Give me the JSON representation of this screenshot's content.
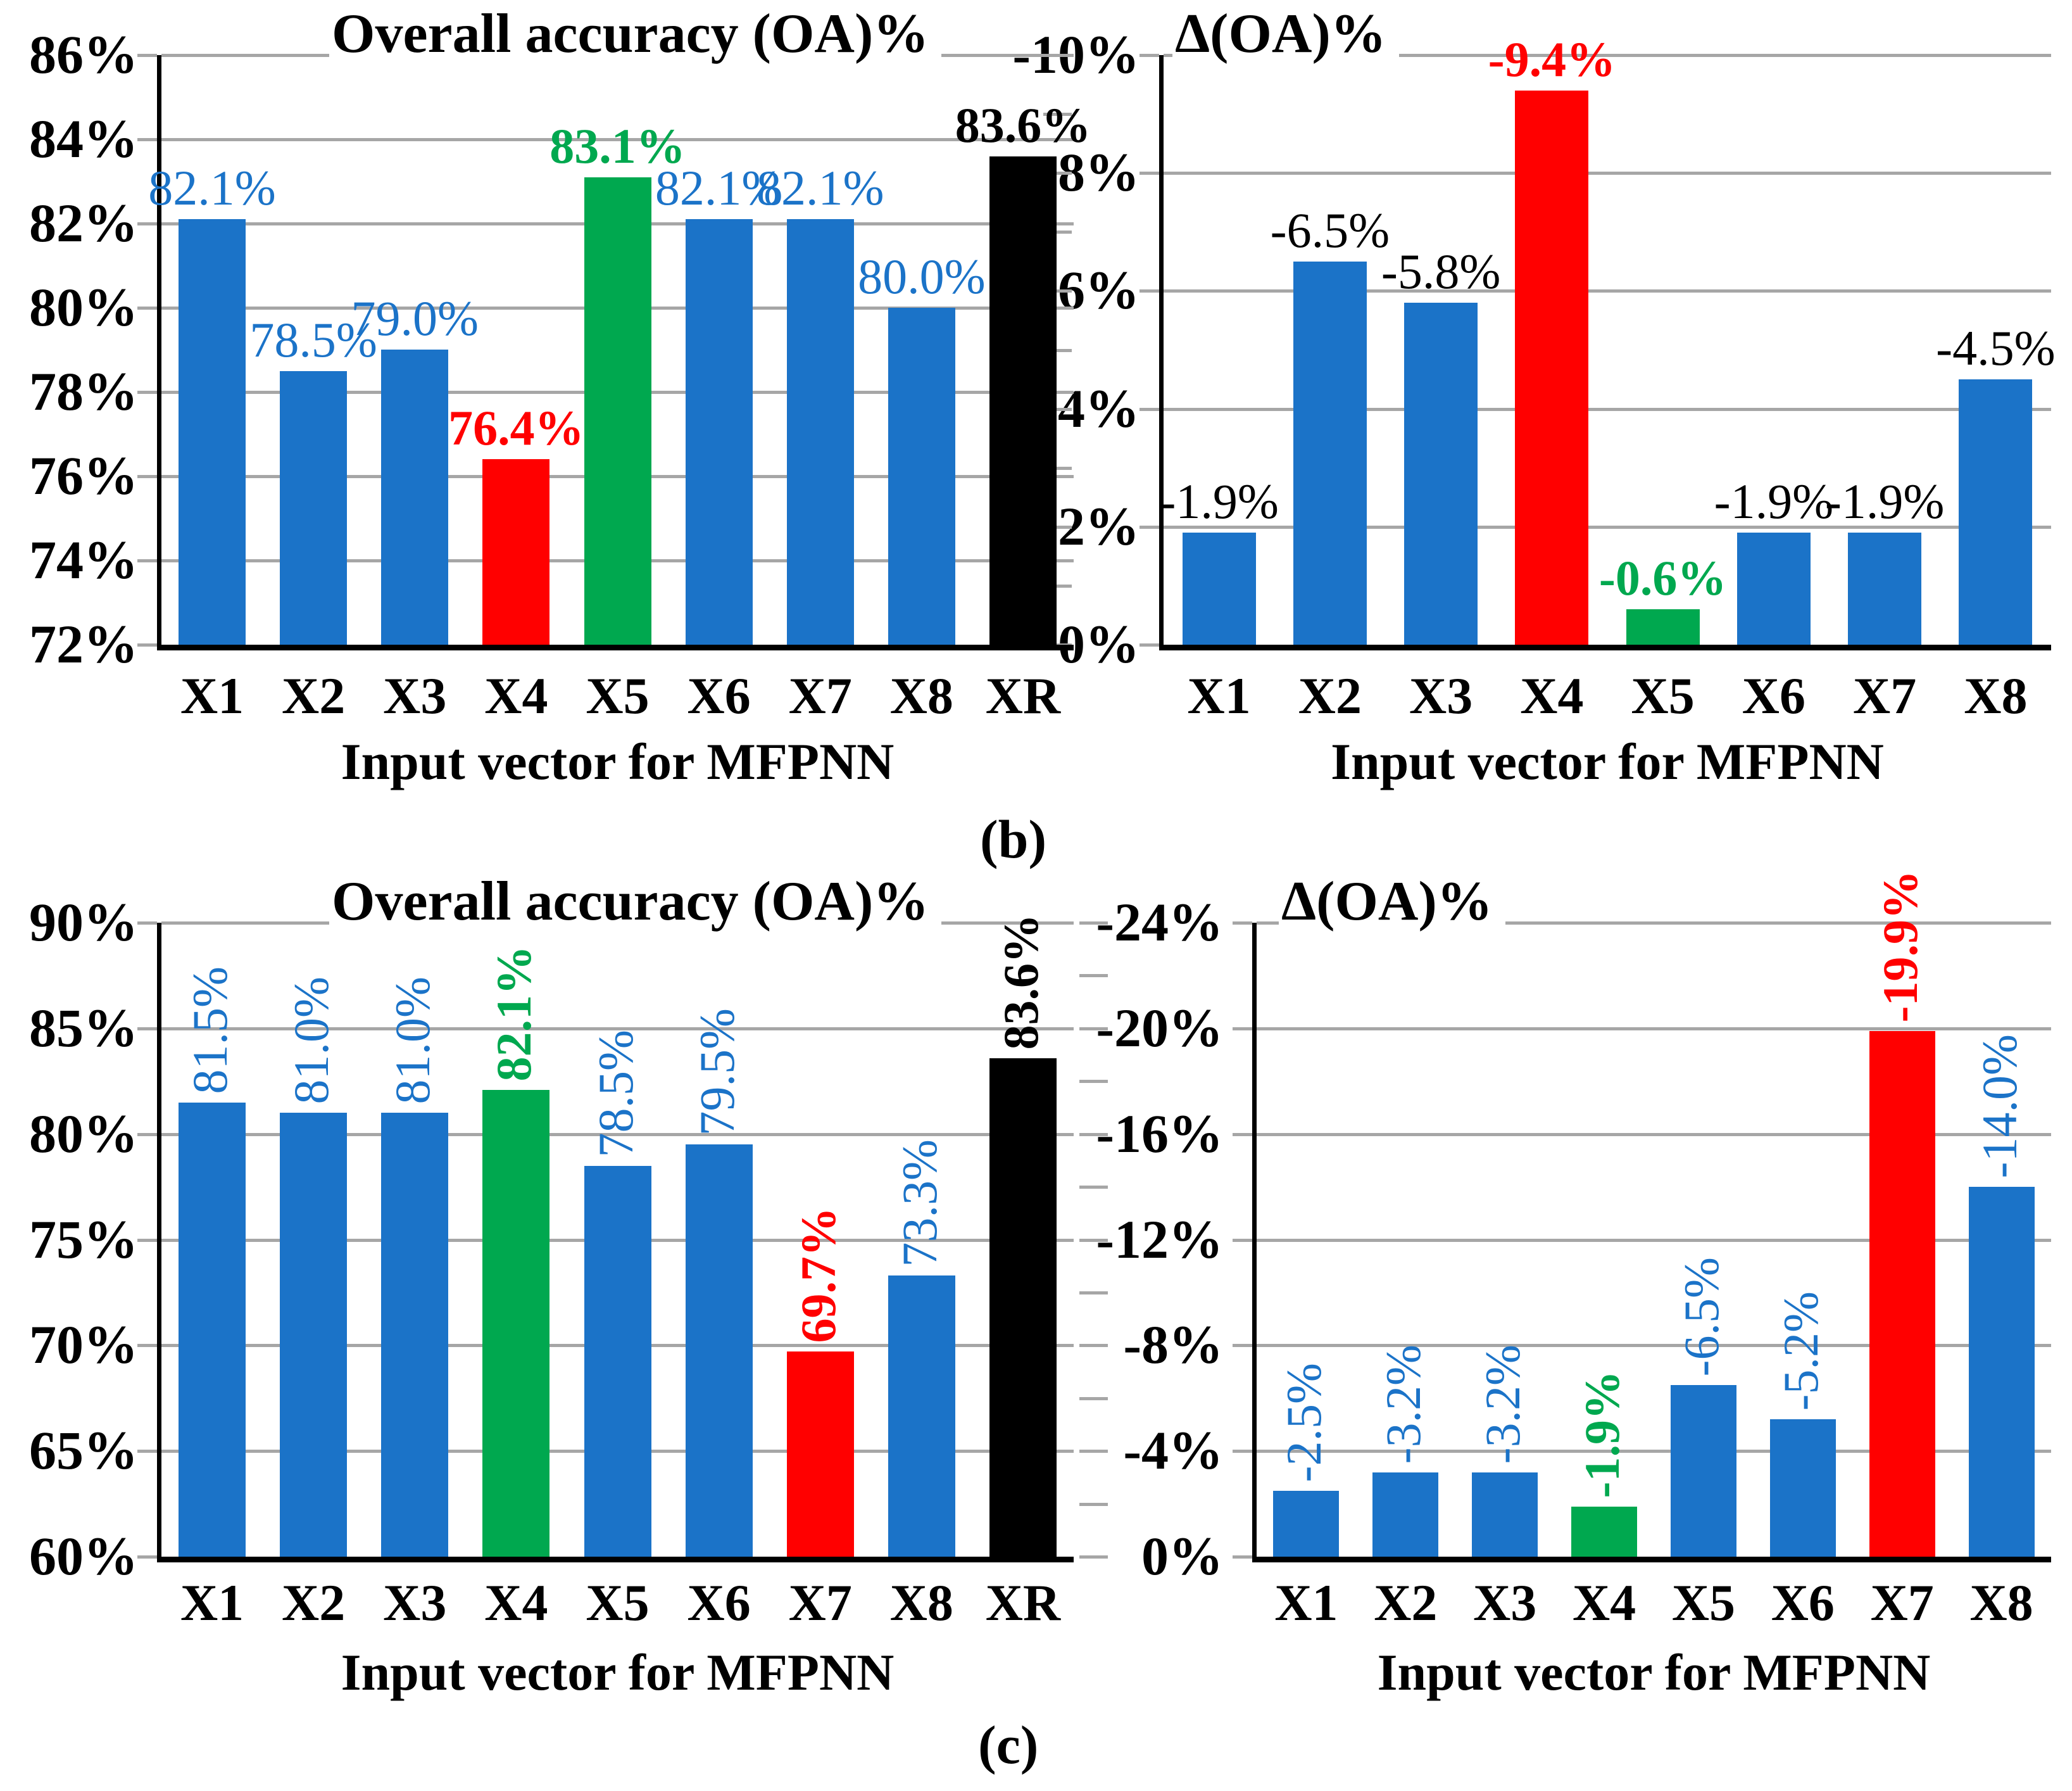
{
  "captions": {
    "b": "(b)",
    "c": "(c)"
  },
  "colors": {
    "blue": "#1B73C8",
    "green": "#00A84F",
    "red": "#FF0000",
    "black": "#000000",
    "grid": "#A6A6A6",
    "axis": "#000000",
    "background": "#FFFFFF"
  },
  "chart_data": [
    {
      "type": "bar",
      "panel": "b",
      "position": "left",
      "title": "Overall accuracy (OA)%",
      "xlabel": "Input vector for MFPNN",
      "categories": [
        "X1",
        "X2",
        "X3",
        "X4",
        "X5",
        "X6",
        "X7",
        "X8",
        "XR"
      ],
      "values": [
        82.1,
        78.5,
        79.0,
        76.4,
        83.1,
        82.1,
        82.1,
        80.0,
        83.6
      ],
      "data_labels": [
        "82.1%",
        "78.5%",
        "79.0%",
        "76.4%",
        "83.1%",
        "82.1%",
        "82.1%",
        "80.0%",
        "83.6%"
      ],
      "bar_colors": [
        "blue",
        "blue",
        "blue",
        "red",
        "green",
        "blue",
        "blue",
        "blue",
        "black"
      ],
      "label_colors": [
        "blue",
        "blue",
        "blue",
        "red",
        "green",
        "blue",
        "blue",
        "blue",
        "black"
      ],
      "label_bold": [
        false,
        false,
        false,
        true,
        true,
        false,
        false,
        false,
        true
      ],
      "label_orientation": "horizontal",
      "ylim": [
        72,
        86
      ],
      "ytick_step": 2,
      "yticks": [
        "86%",
        "84%",
        "82%",
        "80%",
        "78%",
        "76%",
        "74%",
        "72%"
      ],
      "grid": true,
      "legend": "none"
    },
    {
      "type": "bar",
      "panel": "b",
      "position": "right",
      "title": "Δ(OA)%",
      "xlabel": "Input vector for MFPNN",
      "categories": [
        "X1",
        "X2",
        "X3",
        "X4",
        "X5",
        "X6",
        "X7",
        "X8"
      ],
      "values": [
        -1.9,
        -6.5,
        -5.8,
        -9.4,
        -0.6,
        -1.9,
        -1.9,
        -4.5
      ],
      "data_labels": [
        "-1.9%",
        "-6.5%",
        "-5.8%",
        "-9.4%",
        "-0.6%",
        "-1.9%",
        "-1.9%",
        "-4.5%"
      ],
      "bar_colors": [
        "blue",
        "blue",
        "blue",
        "red",
        "green",
        "blue",
        "blue",
        "blue"
      ],
      "label_colors": [
        "black",
        "black",
        "black",
        "red",
        "green",
        "black",
        "black",
        "black"
      ],
      "label_bold": [
        false,
        false,
        false,
        true,
        true,
        false,
        false,
        false
      ],
      "label_orientation": "horizontal",
      "ylim": [
        0,
        -10
      ],
      "ytick_step": 2,
      "yticks": [
        "-10%",
        "-8%",
        "-6%",
        "-4%",
        "-2%",
        "0%"
      ],
      "grid": true,
      "legend": "none"
    },
    {
      "type": "bar",
      "panel": "c",
      "position": "left",
      "title": "Overall accuracy (OA)%",
      "xlabel": "Input vector for MFPNN",
      "categories": [
        "X1",
        "X2",
        "X3",
        "X4",
        "X5",
        "X6",
        "X7",
        "X8",
        "XR"
      ],
      "values": [
        81.5,
        81.0,
        81.0,
        82.1,
        78.5,
        79.5,
        69.7,
        73.3,
        83.6
      ],
      "data_labels": [
        "81.5%",
        "81.0%",
        "81.0%",
        "82.1%",
        "78.5%",
        "79.5%",
        "69.7%",
        "73.3%",
        "83.6%"
      ],
      "bar_colors": [
        "blue",
        "blue",
        "blue",
        "green",
        "blue",
        "blue",
        "red",
        "blue",
        "black"
      ],
      "label_colors": [
        "blue",
        "blue",
        "blue",
        "green",
        "blue",
        "blue",
        "red",
        "blue",
        "black"
      ],
      "label_bold": [
        false,
        false,
        false,
        true,
        false,
        false,
        true,
        false,
        true
      ],
      "label_orientation": "vertical",
      "ylim": [
        60,
        90
      ],
      "ytick_step": 5,
      "yticks": [
        "90%",
        "85%",
        "80%",
        "75%",
        "70%",
        "65%",
        "60%"
      ],
      "grid": true,
      "legend": "none"
    },
    {
      "type": "bar",
      "panel": "c",
      "position": "right",
      "title": "Δ(OA)%",
      "xlabel": "Input vector for MFPNN",
      "categories": [
        "X1",
        "X2",
        "X3",
        "X4",
        "X5",
        "X6",
        "X7",
        "X8"
      ],
      "values": [
        -2.5,
        -3.2,
        -3.2,
        -1.9,
        -6.5,
        -5.2,
        -19.9,
        -14.0
      ],
      "data_labels": [
        "-2.5%",
        "-3.2%",
        "-3.2%",
        "-1.9%",
        "-6.5%",
        "-5.2%",
        "-19.9%",
        "-14.0%"
      ],
      "bar_colors": [
        "blue",
        "blue",
        "blue",
        "green",
        "blue",
        "blue",
        "red",
        "blue"
      ],
      "label_colors": [
        "blue",
        "blue",
        "blue",
        "green",
        "blue",
        "blue",
        "red",
        "blue"
      ],
      "label_bold": [
        false,
        false,
        false,
        true,
        false,
        false,
        true,
        false
      ],
      "label_orientation": "vertical",
      "ylim": [
        0,
        -24
      ],
      "ytick_step": 4,
      "yticks": [
        "-24%",
        "-20%",
        "-16%",
        "-12%",
        "-8%",
        "-4%",
        "0%"
      ],
      "grid": true,
      "legend": "none"
    }
  ]
}
